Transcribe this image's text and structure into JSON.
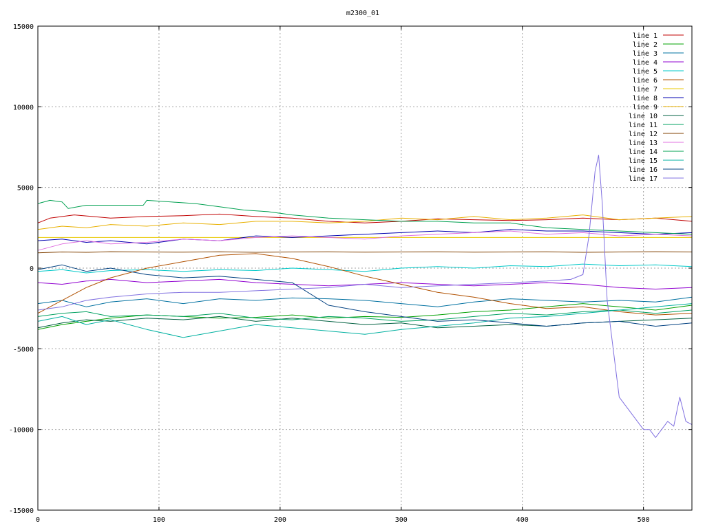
{
  "chart_data": {
    "type": "line",
    "title": "m2300_01",
    "xlabel": "",
    "ylabel": "",
    "xlim": [
      0,
      540
    ],
    "ylim": [
      -15000,
      15000
    ],
    "x_ticks": [
      "0",
      "100",
      "200",
      "300",
      "400",
      "500"
    ],
    "y_ticks": [
      "-15000",
      "-10000",
      "-5000",
      "0",
      "5000",
      "10000",
      "15000"
    ],
    "grid": true,
    "legend_position": "top-right",
    "series": [
      {
        "name": "line 1",
        "color": "#c00000",
        "x": [
          0,
          10,
          30,
          60,
          90,
          120,
          150,
          180,
          210,
          240,
          270,
          300,
          330,
          360,
          390,
          420,
          450,
          480,
          510,
          540
        ],
        "y": [
          2800,
          3100,
          3300,
          3100,
          3200,
          3250,
          3350,
          3200,
          3100,
          2900,
          2800,
          2900,
          3050,
          3000,
          2950,
          3000,
          3100,
          3000,
          3100,
          2900
        ]
      },
      {
        "name": "line 2",
        "color": "#00a000",
        "x": [
          0,
          20,
          40,
          60,
          90,
          120,
          150,
          180,
          210,
          240,
          270,
          300,
          330,
          360,
          390,
          420,
          450,
          480,
          510,
          540
        ],
        "y": [
          -3800,
          -3500,
          -3300,
          -3100,
          -2900,
          -3000,
          -3100,
          -3050,
          -2900,
          -3100,
          -3000,
          -3050,
          -2900,
          -2700,
          -2600,
          -2400,
          -2200,
          -2400,
          -2600,
          -2300
        ]
      },
      {
        "name": "line 3",
        "color": "#0070a0",
        "x": [
          0,
          20,
          40,
          60,
          90,
          120,
          150,
          180,
          210,
          240,
          270,
          300,
          330,
          360,
          390,
          420,
          450,
          480,
          510,
          540
        ],
        "y": [
          -2200,
          -2000,
          -2400,
          -2100,
          -1900,
          -2200,
          -1900,
          -2000,
          -1850,
          -1900,
          -2000,
          -2200,
          -2400,
          -2100,
          -1900,
          -2000,
          -2100,
          -2000,
          -2100,
          -1800
        ]
      },
      {
        "name": "line 4",
        "color": "#9000d0",
        "x": [
          0,
          20,
          40,
          60,
          90,
          120,
          150,
          180,
          210,
          240,
          270,
          300,
          330,
          360,
          390,
          420,
          450,
          480,
          510,
          540
        ],
        "y": [
          -900,
          -1000,
          -800,
          -700,
          -900,
          -800,
          -700,
          -900,
          -1000,
          -1100,
          -1000,
          -900,
          -1000,
          -1100,
          -1000,
          -900,
          -1000,
          -1200,
          -1300,
          -1200
        ]
      },
      {
        "name": "line 5",
        "color": "#00c8c8",
        "x": [
          0,
          20,
          40,
          60,
          90,
          120,
          150,
          180,
          210,
          240,
          270,
          300,
          330,
          360,
          390,
          420,
          450,
          480,
          510,
          540
        ],
        "y": [
          -200,
          -100,
          -300,
          -150,
          -100,
          -200,
          -100,
          -150,
          0,
          -100,
          -200,
          0,
          100,
          0,
          150,
          100,
          250,
          150,
          200,
          100
        ]
      },
      {
        "name": "line 6",
        "color": "#b05000",
        "x": [
          0,
          20,
          40,
          60,
          90,
          120,
          150,
          180,
          210,
          240,
          270,
          300,
          330,
          360,
          390,
          420,
          450,
          480,
          510,
          540
        ],
        "y": [
          -2800,
          -2000,
          -1200,
          -600,
          0,
          400,
          800,
          900,
          600,
          100,
          -500,
          -1000,
          -1500,
          -1800,
          -2200,
          -2500,
          -2400,
          -2700,
          -2900,
          -2800
        ]
      },
      {
        "name": "line 7",
        "color": "#e8c800",
        "x": [
          0,
          10,
          20,
          60,
          100,
          140,
          180,
          220,
          260,
          300,
          340,
          380,
          420,
          460,
          500,
          540
        ],
        "y": [
          1900,
          1900,
          1900,
          1900,
          1900,
          1900,
          1900,
          1900,
          1900,
          1900,
          1900,
          1900,
          1900,
          1900,
          1900,
          1900
        ]
      },
      {
        "name": "line 8",
        "color": "#0000b0",
        "x": [
          0,
          20,
          40,
          60,
          90,
          120,
          150,
          180,
          210,
          240,
          270,
          300,
          330,
          360,
          390,
          420,
          450,
          480,
          510,
          540
        ],
        "y": [
          1700,
          1800,
          1600,
          1700,
          1500,
          1800,
          1700,
          2000,
          1900,
          2000,
          2100,
          2200,
          2300,
          2200,
          2400,
          2300,
          2300,
          2200,
          2100,
          2200
        ]
      },
      {
        "name": "line 9",
        "color": "#e8b000",
        "x": [
          0,
          20,
          40,
          60,
          90,
          120,
          150,
          180,
          210,
          240,
          270,
          300,
          330,
          360,
          390,
          420,
          450,
          480,
          510,
          540
        ],
        "y": [
          2400,
          2600,
          2500,
          2700,
          2600,
          2800,
          2700,
          2900,
          2900,
          2800,
          2900,
          3100,
          3000,
          3200,
          3000,
          3100,
          3300,
          3000,
          3100,
          3200
        ]
      },
      {
        "name": "line 10",
        "color": "#006040",
        "x": [
          0,
          20,
          40,
          60,
          90,
          120,
          150,
          180,
          210,
          240,
          270,
          300,
          330,
          360,
          390,
          420,
          450,
          480,
          510,
          540
        ],
        "y": [
          -3700,
          -3400,
          -3200,
          -3300,
          -3100,
          -3200,
          -3000,
          -3300,
          -3100,
          -3300,
          -3500,
          -3400,
          -3700,
          -3600,
          -3500,
          -3600,
          -3400,
          -3300,
          -3200,
          -3100
        ]
      },
      {
        "name": "line 11",
        "color": "#00a060",
        "x": [
          0,
          20,
          40,
          60,
          90,
          120,
          150,
          180,
          210,
          240,
          270,
          300,
          330,
          360,
          390,
          420,
          450,
          480,
          510,
          540
        ],
        "y": [
          -3000,
          -2800,
          -2700,
          -3000,
          -2900,
          -3000,
          -2800,
          -3100,
          -3200,
          -3000,
          -3100,
          -3300,
          -3200,
          -3000,
          -2800,
          -2900,
          -2700,
          -2600,
          -2800,
          -2600
        ]
      },
      {
        "name": "line 12",
        "color": "#804000",
        "x": [
          0,
          20,
          40,
          60,
          90,
          120,
          150,
          180,
          210,
          240,
          270,
          300,
          330,
          360,
          390,
          420,
          450,
          480,
          510,
          540
        ],
        "y": [
          950,
          1000,
          980,
          1020,
          1000,
          990,
          1010,
          980,
          1000,
          1010,
          990,
          1000,
          1010,
          990,
          1000,
          1010,
          980,
          1000,
          1020,
          1000
        ]
      },
      {
        "name": "line 13",
        "color": "#e070e0",
        "x": [
          0,
          20,
          40,
          60,
          90,
          120,
          150,
          180,
          210,
          240,
          270,
          300,
          330,
          360,
          390,
          420,
          450,
          480,
          510,
          540
        ],
        "y": [
          1100,
          1500,
          1700,
          1500,
          1600,
          1800,
          1700,
          1900,
          2000,
          1900,
          1800,
          2000,
          2100,
          2200,
          2300,
          2100,
          2200,
          2000,
          2100,
          2000
        ]
      },
      {
        "name": "line 14",
        "color": "#00a050",
        "x": [
          0,
          10,
          20,
          25,
          40,
          60,
          80,
          87,
          90,
          110,
          130,
          150,
          170,
          190,
          210,
          240,
          270,
          300,
          330,
          360,
          390,
          420,
          450,
          480,
          510,
          540
        ],
        "y": [
          4000,
          4200,
          4100,
          3700,
          3900,
          3900,
          3900,
          3900,
          4200,
          4100,
          4000,
          3800,
          3600,
          3500,
          3300,
          3100,
          3000,
          2900,
          2900,
          2800,
          2800,
          2500,
          2400,
          2300,
          2200,
          2100
        ]
      },
      {
        "name": "line 15",
        "color": "#00b0a0",
        "x": [
          0,
          20,
          40,
          60,
          90,
          120,
          150,
          180,
          210,
          240,
          270,
          300,
          330,
          360,
          390,
          420,
          450,
          480,
          510,
          540
        ],
        "y": [
          -3300,
          -3000,
          -3500,
          -3200,
          -3800,
          -4300,
          -3900,
          -3500,
          -3700,
          -3900,
          -4100,
          -3800,
          -3600,
          -3400,
          -3100,
          -3000,
          -2800,
          -2600,
          -2400,
          -2200
        ]
      },
      {
        "name": "line 16",
        "color": "#004080",
        "x": [
          0,
          20,
          40,
          60,
          90,
          120,
          150,
          180,
          210,
          240,
          270,
          300,
          330,
          360,
          390,
          420,
          450,
          480,
          510,
          540
        ],
        "y": [
          -100,
          200,
          -200,
          0,
          -400,
          -600,
          -500,
          -700,
          -900,
          -2300,
          -2700,
          -3000,
          -3300,
          -3200,
          -3400,
          -3600,
          -3400,
          -3300,
          -3600,
          -3400
        ]
      },
      {
        "name": "line 17",
        "color": "#8070e0",
        "x": [
          0,
          20,
          40,
          60,
          90,
          120,
          150,
          180,
          210,
          240,
          270,
          300,
          330,
          360,
          390,
          420,
          440,
          450,
          455,
          460,
          463,
          466,
          470,
          475,
          480,
          490,
          500,
          505,
          510,
          515,
          520,
          525,
          530,
          535,
          540
        ],
        "y": [
          -2600,
          -2400,
          -2000,
          -1800,
          -1600,
          -1500,
          -1500,
          -1400,
          -1300,
          -1200,
          -1000,
          -1200,
          -1100,
          -1000,
          -900,
          -800,
          -700,
          -400,
          2000,
          6000,
          7000,
          4000,
          -2000,
          -5000,
          -8000,
          -9000,
          -10000,
          -10000,
          -10500,
          -10000,
          -9500,
          -9800,
          -8000,
          -9500,
          -9700
        ]
      }
    ]
  }
}
